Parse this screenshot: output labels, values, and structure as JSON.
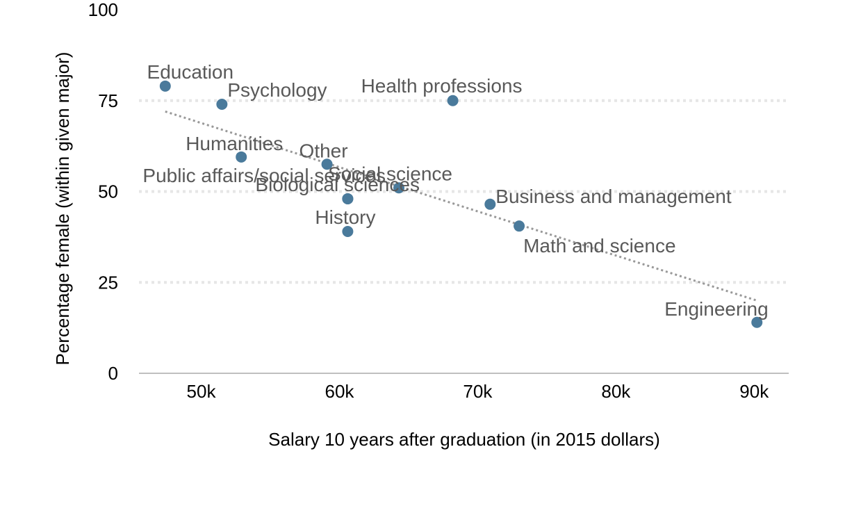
{
  "chart_data": {
    "type": "scatter",
    "title": "",
    "xlabel": "Salary 10 years after graduation (in 2015 dollars)",
    "ylabel": "Percentage female (within given major)",
    "xlim": [
      45500,
      92500
    ],
    "ylim": [
      0,
      100
    ],
    "x_ticks": [
      50000,
      60000,
      70000,
      80000,
      90000
    ],
    "x_tick_labels": [
      "50k",
      "60k",
      "70k",
      "80k",
      "90k"
    ],
    "y_ticks": [
      0,
      25,
      50,
      75,
      100
    ],
    "y_tick_labels": [
      "0",
      "25",
      "50",
      "75",
      "100"
    ],
    "grid": "horizontal dotted",
    "point_color": "#4a7a9b",
    "trend_color": "#999999",
    "points": [
      {
        "label": "Education",
        "x": 47400,
        "y": 79
      },
      {
        "label": "Psychology",
        "x": 51500,
        "y": 74
      },
      {
        "label": "Health professions",
        "x": 68200,
        "y": 75
      },
      {
        "label": "Humanities",
        "x": 52900,
        "y": 59.5
      },
      {
        "label": "Other",
        "x": 59100,
        "y": 57.5
      },
      {
        "label": "Public affairs/social services",
        "x": 60600,
        "y": 48
      },
      {
        "label": "Social science",
        "x": 64300,
        "y": 51
      },
      {
        "label": "Biological sciences",
        "x": 60600,
        "y": 48
      },
      {
        "label": "Business and management",
        "x": 70900,
        "y": 46.5
      },
      {
        "label": "History",
        "x": 60600,
        "y": 39
      },
      {
        "label": "Math and science",
        "x": 73000,
        "y": 40.5
      },
      {
        "label": "Engineering",
        "x": 90200,
        "y": 14
      }
    ],
    "trendline": {
      "x": [
        47400,
        90200
      ],
      "y": [
        72,
        20
      ]
    }
  }
}
